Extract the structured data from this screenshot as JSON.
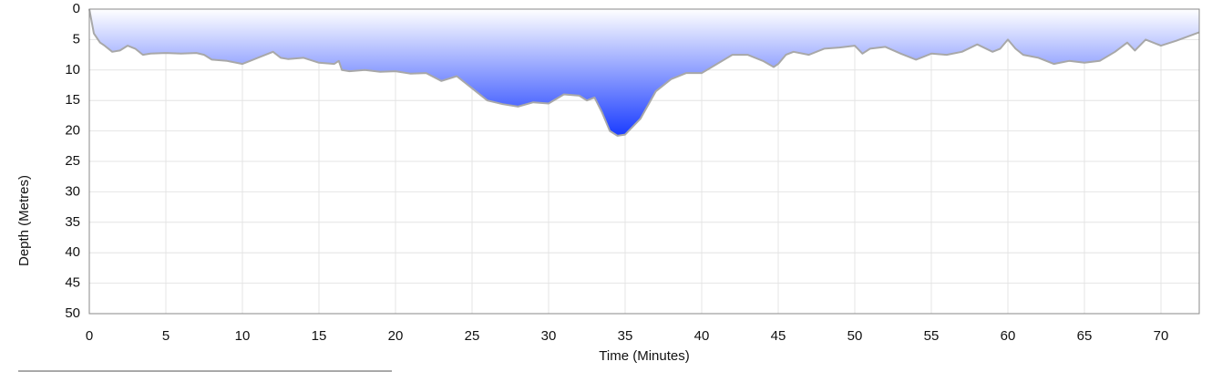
{
  "chart_data": {
    "type": "area",
    "x_label": "Time (Minutes)",
    "y_label": "Depth (Metres)",
    "x": [
      0,
      0.3,
      0.7,
      1,
      1.5,
      2,
      2.5,
      3,
      3.5,
      4,
      5,
      6,
      7,
      7.5,
      8,
      9,
      10,
      10.5,
      11,
      12,
      12.5,
      13,
      14,
      15,
      16,
      16.3,
      16.5,
      17,
      18,
      19,
      20,
      21,
      22,
      23,
      24,
      25,
      26,
      27,
      28,
      29,
      30,
      31,
      32,
      32.5,
      33,
      33.5,
      34,
      34.5,
      35,
      36,
      37,
      38,
      39,
      40,
      41,
      42,
      43,
      44,
      44.7,
      45,
      45.5,
      46,
      47,
      48,
      49,
      50,
      50.5,
      51,
      52,
      53,
      54,
      55,
      56,
      57,
      58,
      59,
      59.5,
      60,
      60.5,
      61,
      62,
      63,
      64,
      65,
      66,
      67,
      67.8,
      68.3,
      69,
      70,
      71,
      72.5
    ],
    "values": [
      0,
      4,
      5.5,
      6,
      7,
      6.8,
      6,
      6.5,
      7.5,
      7.3,
      7.2,
      7.3,
      7.2,
      7.5,
      8.3,
      8.5,
      9,
      8.5,
      8,
      7,
      8,
      8.2,
      8,
      8.8,
      9,
      8.5,
      10,
      10.2,
      10,
      10.3,
      10.2,
      10.6,
      10.5,
      11.8,
      11,
      13,
      15,
      15.6,
      16,
      15.3,
      15.5,
      14,
      14.2,
      15,
      14.5,
      17,
      20,
      20.8,
      20.6,
      18,
      13.5,
      11.5,
      10.5,
      10.5,
      9,
      7.5,
      7.5,
      8.5,
      9.5,
      9,
      7.5,
      7,
      7.5,
      6.5,
      6.3,
      6,
      7.3,
      6.5,
      6.2,
      7.3,
      8.3,
      7.3,
      7.5,
      7,
      5.8,
      7,
      6.5,
      5,
      6.5,
      7.5,
      8,
      9,
      8.5,
      8.8,
      8.5,
      7,
      5.5,
      6.8,
      5,
      6,
      5.2,
      3.8
    ],
    "y_inverted": true,
    "color_top": "#ffffff",
    "color_bottom": "#1a3cff",
    "line_color": "#a8a8a8",
    "xlim": [
      0,
      72.5
    ],
    "ylim": [
      0,
      50
    ],
    "xticks": [
      0,
      5,
      10,
      15,
      20,
      25,
      30,
      35,
      40,
      45,
      50,
      55,
      60,
      65,
      70
    ],
    "yticks": [
      0,
      5,
      10,
      15,
      20,
      25,
      30,
      35,
      40,
      45,
      50
    ],
    "grid": true
  }
}
